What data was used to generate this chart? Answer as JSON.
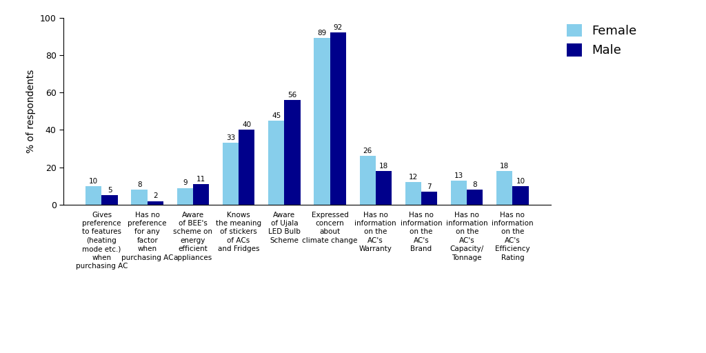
{
  "categories": [
    "Gives\npreference\nto features\n(heating\nmode etc.)\nwhen\npurchasing AC",
    "Has no\npreference\nfor any\nfactor\nwhen\npurchasing AC",
    "Aware\nof BEE's\nscheme on\nenergy\nefficient\nappliances",
    "Knows\nthe meaning\nof stickers\nof ACs\nand Fridges",
    "Aware\nof Ujala\nLED Bulb\nScheme",
    "Expressed\nconcern\nabout\nclimate change",
    "Has no\ninformation\non the\nAC's\nWarranty",
    "Has no\ninformation\non the\nAC's\nBrand",
    "Has no\ninformation\non the\nAC's\nCapacity/\nTonnage",
    "Has no\ninformation\non the\nAC's\nEfficiency\nRating"
  ],
  "female": [
    10,
    8,
    9,
    33,
    45,
    89,
    26,
    12,
    13,
    18
  ],
  "male": [
    5,
    2,
    11,
    40,
    56,
    92,
    18,
    7,
    8,
    10
  ],
  "female_color": "#87CEEB",
  "male_color": "#00008B",
  "ylabel": "% of respondents",
  "ylim": [
    0,
    100
  ],
  "yticks": [
    0,
    20,
    40,
    60,
    80,
    100
  ],
  "bar_width": 0.35,
  "legend_labels": [
    "Female",
    "Male"
  ],
  "background_color": "#ffffff",
  "label_fontsize": 7.5,
  "tick_fontsize": 9,
  "ylabel_fontsize": 10,
  "legend_fontsize": 13,
  "value_fontsize": 7.5
}
